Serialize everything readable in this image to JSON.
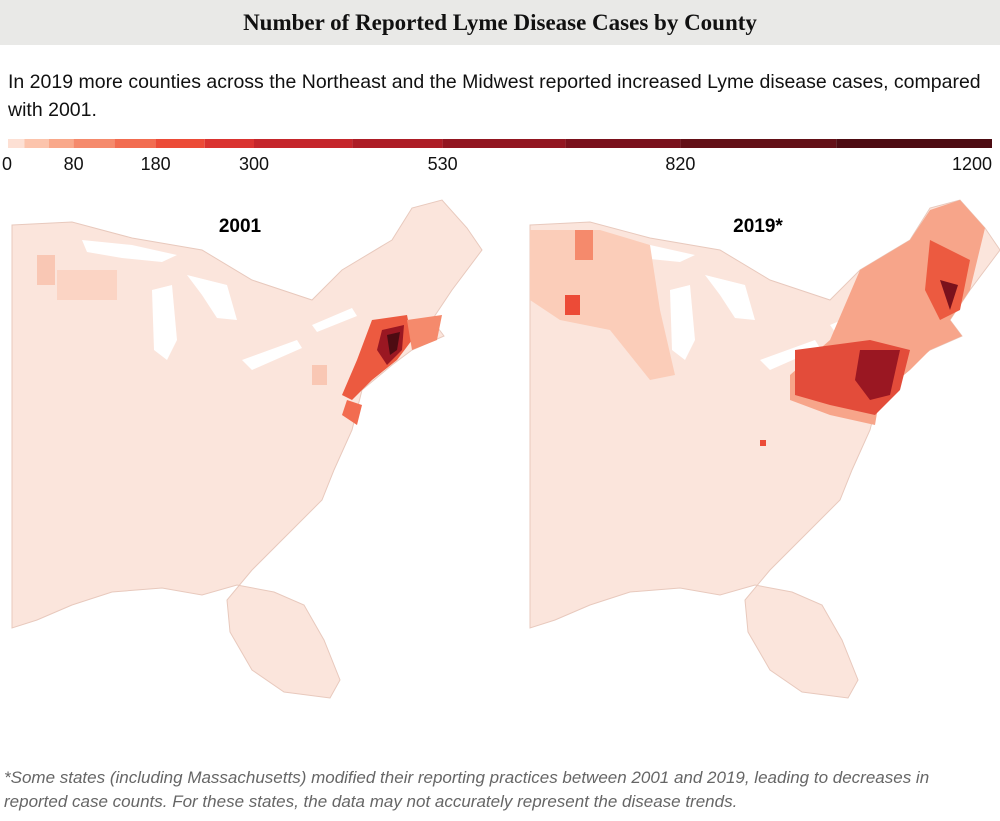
{
  "header": {
    "title": "Number of Reported Lyme Disease Cases by County"
  },
  "subtitle": "In 2019 more counties across the Northeast and the Midwest reported increased Lyme disease cases, compared with 2001.",
  "legend": {
    "range": [
      0,
      1200
    ],
    "ticks": [
      0,
      80,
      180,
      300,
      530,
      820,
      1200
    ],
    "bins": [
      0,
      20,
      50,
      80,
      130,
      180,
      240,
      300,
      420,
      530,
      680,
      820,
      1010,
      1200
    ],
    "colors": [
      "#fde0d4",
      "#fcc4ac",
      "#f9a88a",
      "#f58a6c",
      "#f26c50",
      "#ec4b37",
      "#da3330",
      "#c5262b",
      "#ad1d26",
      "#921621",
      "#7a111c",
      "#631017",
      "#4d0b12"
    ]
  },
  "maps": [
    {
      "title": "2001"
    },
    {
      "title": "2019*"
    }
  ],
  "footnote": "*Some states (including Massachusetts) modified their reporting practices between 2001 and 2019, leading to decreases in reported case counts. For these states, the data may not accurately represent the disease trends."
}
